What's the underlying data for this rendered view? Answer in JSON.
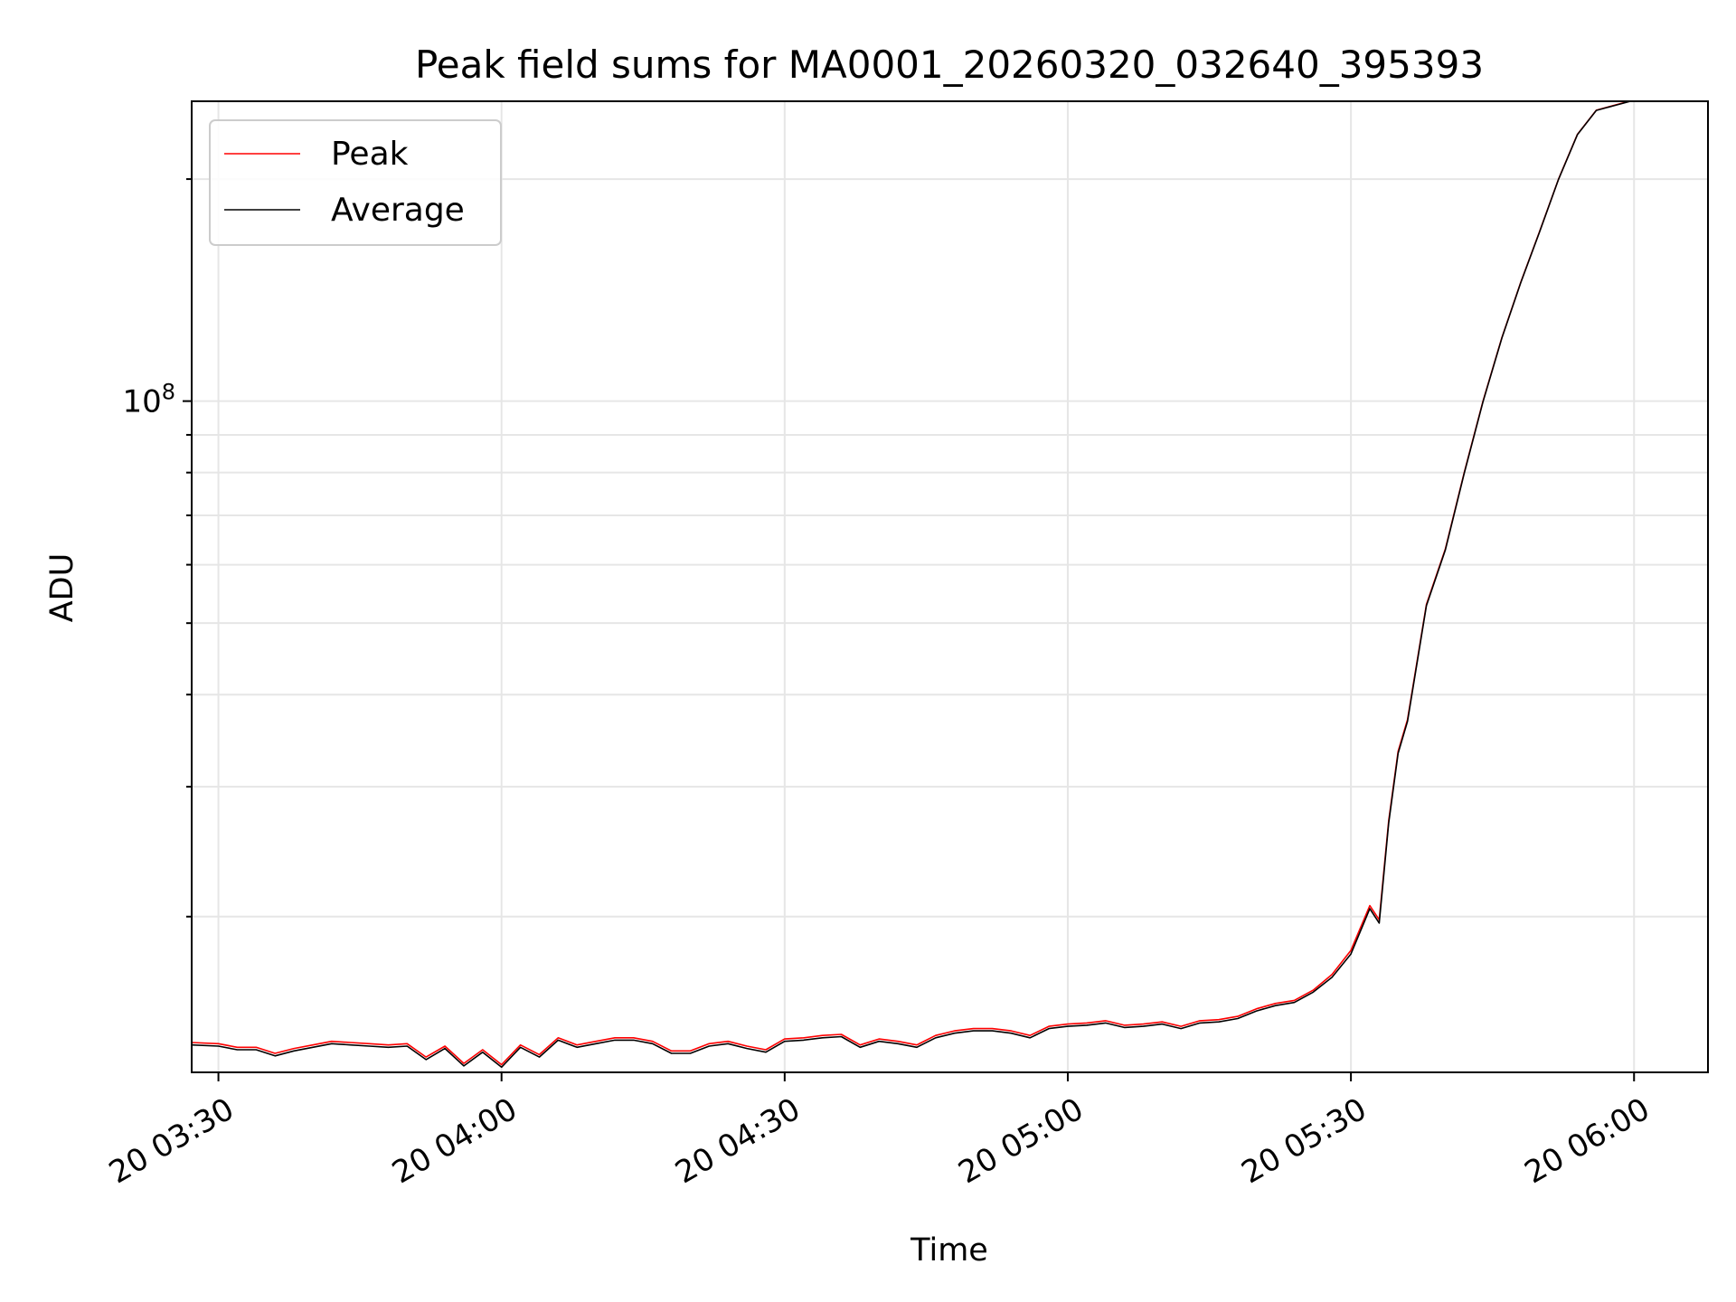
{
  "chart_data": {
    "type": "line",
    "title": "Peak field sums for MA0001_20260320_032640_395393",
    "xlabel": "Time",
    "ylabel": "ADU",
    "y_scale": "log",
    "ylim": [
      12300000,
      255000000
    ],
    "xlim": [
      "2026-03-20T03:27:10",
      "2026-03-20T06:07:50"
    ],
    "x_ticks": [
      {
        "t": "2026-03-20T03:30",
        "label": "20 03:30"
      },
      {
        "t": "2026-03-20T04:00",
        "label": "20 04:00"
      },
      {
        "t": "2026-03-20T04:30",
        "label": "20 04:30"
      },
      {
        "t": "2026-03-20T05:00",
        "label": "20 05:00"
      },
      {
        "t": "2026-03-20T05:30",
        "label": "20 05:30"
      },
      {
        "t": "2026-03-20T06:00",
        "label": "20 06:00"
      }
    ],
    "y_ticks": [
      {
        "value": 100000000,
        "base": "10",
        "exp": "8"
      }
    ],
    "y_minor_ticks": [
      20000000,
      30000000,
      40000000,
      50000000,
      60000000,
      70000000,
      80000000,
      90000000,
      200000000
    ],
    "grid": true,
    "legend_position": "upper-left",
    "x": [
      "2026-03-20T03:27:10",
      "2026-03-20T03:30",
      "2026-03-20T03:32",
      "2026-03-20T03:34",
      "2026-03-20T03:36",
      "2026-03-20T03:38",
      "2026-03-20T03:40",
      "2026-03-20T03:42",
      "2026-03-20T03:44",
      "2026-03-20T03:46",
      "2026-03-20T03:48",
      "2026-03-20T03:50",
      "2026-03-20T03:52",
      "2026-03-20T03:54",
      "2026-03-20T03:56",
      "2026-03-20T03:58",
      "2026-03-20T04:00",
      "2026-03-20T04:02",
      "2026-03-20T04:04",
      "2026-03-20T04:06",
      "2026-03-20T04:08",
      "2026-03-20T04:10",
      "2026-03-20T04:12",
      "2026-03-20T04:14",
      "2026-03-20T04:16",
      "2026-03-20T04:18",
      "2026-03-20T04:20",
      "2026-03-20T04:22",
      "2026-03-20T04:24",
      "2026-03-20T04:26",
      "2026-03-20T04:28",
      "2026-03-20T04:30",
      "2026-03-20T04:32",
      "2026-03-20T04:34",
      "2026-03-20T04:36",
      "2026-03-20T04:38",
      "2026-03-20T04:40",
      "2026-03-20T04:42",
      "2026-03-20T04:44",
      "2026-03-20T04:46",
      "2026-03-20T04:48",
      "2026-03-20T04:50",
      "2026-03-20T04:52",
      "2026-03-20T04:54",
      "2026-03-20T04:56",
      "2026-03-20T04:58",
      "2026-03-20T05:00",
      "2026-03-20T05:02",
      "2026-03-20T05:04",
      "2026-03-20T05:06",
      "2026-03-20T05:08",
      "2026-03-20T05:10",
      "2026-03-20T05:12",
      "2026-03-20T05:14",
      "2026-03-20T05:16",
      "2026-03-20T05:18",
      "2026-03-20T05:20",
      "2026-03-20T05:22",
      "2026-03-20T05:24",
      "2026-03-20T05:26",
      "2026-03-20T05:28",
      "2026-03-20T05:30",
      "2026-03-20T05:32",
      "2026-03-20T05:33",
      "2026-03-20T05:34",
      "2026-03-20T05:35",
      "2026-03-20T05:36",
      "2026-03-20T05:38",
      "2026-03-20T05:40",
      "2026-03-20T05:42",
      "2026-03-20T05:44",
      "2026-03-20T05:46",
      "2026-03-20T05:48",
      "2026-03-20T05:50",
      "2026-03-20T05:52",
      "2026-03-20T05:54",
      "2026-03-20T05:56",
      "2026-03-20T05:58",
      "2026-03-20T06:00"
    ],
    "series": [
      {
        "name": "Peak",
        "color": "#ff0000",
        "values": [
          13500000,
          13450000,
          13300000,
          13300000,
          13050000,
          13250000,
          13400000,
          13550000,
          13500000,
          13450000,
          13400000,
          13450000,
          12900000,
          13350000,
          12650000,
          13200000,
          12600000,
          13400000,
          13000000,
          13700000,
          13400000,
          13550000,
          13700000,
          13700000,
          13550000,
          13150000,
          13150000,
          13450000,
          13550000,
          13350000,
          13200000,
          13650000,
          13700000,
          13800000,
          13850000,
          13400000,
          13650000,
          13550000,
          13400000,
          13800000,
          14000000,
          14100000,
          14100000,
          14000000,
          13800000,
          14200000,
          14300000,
          14350000,
          14450000,
          14250000,
          14300000,
          14400000,
          14200000,
          14450000,
          14500000,
          14650000,
          15000000,
          15250000,
          15400000,
          15900000,
          16700000,
          18000000,
          20700000,
          19800000,
          27000000,
          33500000,
          37000000,
          53000000,
          63000000,
          80000000,
          100000000,
          122000000,
          145000000,
          170000000,
          200000000,
          230000000,
          248000000,
          252000000,
          256000000
        ]
      },
      {
        "name": "Average",
        "color": "#000000",
        "values": [
          13400000,
          13350000,
          13200000,
          13200000,
          12950000,
          13150000,
          13300000,
          13450000,
          13400000,
          13350000,
          13300000,
          13350000,
          12800000,
          13250000,
          12550000,
          13100000,
          12500000,
          13300000,
          12900000,
          13600000,
          13300000,
          13450000,
          13600000,
          13600000,
          13450000,
          13050000,
          13050000,
          13350000,
          13450000,
          13250000,
          13100000,
          13550000,
          13600000,
          13700000,
          13750000,
          13300000,
          13550000,
          13450000,
          13300000,
          13700000,
          13900000,
          14000000,
          14000000,
          13900000,
          13700000,
          14100000,
          14200000,
          14250000,
          14350000,
          14150000,
          14200000,
          14300000,
          14100000,
          14350000,
          14400000,
          14550000,
          14900000,
          15150000,
          15300000,
          15800000,
          16550000,
          17800000,
          20500000,
          19600000,
          26800000,
          33300000,
          36800000,
          52800000,
          62800000,
          79800000,
          99800000,
          121800000,
          144800000,
          169800000,
          199800000,
          229800000,
          247800000,
          251800000,
          255800000
        ]
      }
    ]
  }
}
